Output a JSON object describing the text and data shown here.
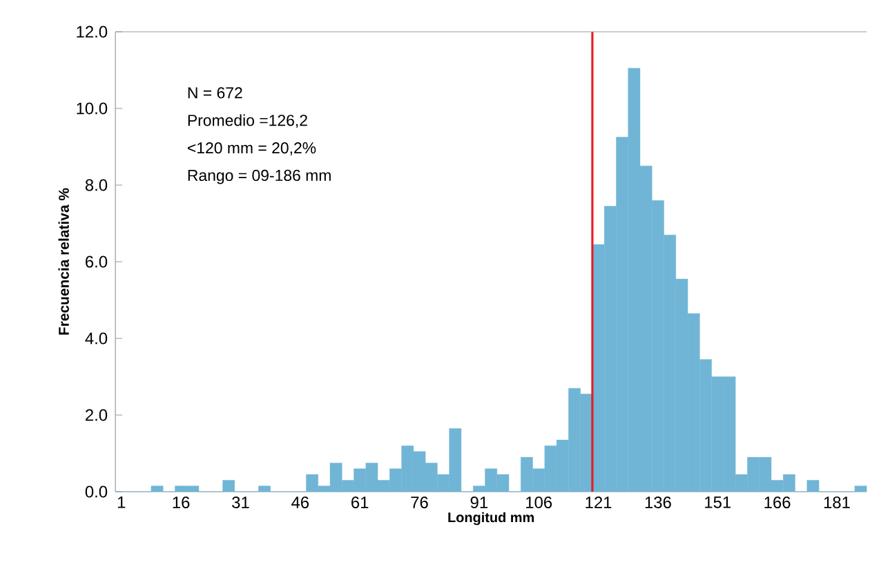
{
  "chart_data": {
    "type": "histogram",
    "xlabel": "Longitud mm",
    "ylabel": "Frecuencia relativa %",
    "bins": [
      -0.5,
      2.5,
      5.5,
      8.5,
      11.5,
      14.5,
      17.5,
      20.5,
      23.5,
      26.5,
      29.5,
      32.5,
      35.5,
      38.5,
      41.5,
      44.5,
      47.5,
      50.5,
      53.5,
      56.5,
      59.5,
      62.5,
      65.5,
      68.5,
      71.5,
      74.5,
      77.5,
      80.5,
      83.5,
      86.5,
      89.5,
      92.5,
      95.5,
      98.5,
      101.5,
      104.5,
      107.5,
      110.5,
      113.5,
      116.5,
      119.5,
      122.5,
      125.5,
      128.5,
      131.5,
      134.5,
      137.5,
      140.5,
      143.5,
      146.5,
      149.5,
      152.5,
      155.5,
      158.5,
      161.5,
      164.5,
      167.5,
      170.5,
      173.5,
      176.5,
      179.5,
      182.5,
      185.5,
      188.5
    ],
    "values": [
      0,
      0,
      0,
      0.15,
      0,
      0.15,
      0.15,
      0,
      0,
      0.3,
      0,
      0,
      0.15,
      0,
      0,
      0,
      0.45,
      0.15,
      0.75,
      0.3,
      0.6,
      0.75,
      0.3,
      0.6,
      1.2,
      1.05,
      0.75,
      0.45,
      1.65,
      0,
      0.15,
      0.6,
      0.45,
      0,
      0.9,
      0.6,
      1.2,
      1.35,
      2.7,
      2.55,
      6.45,
      7.45,
      9.25,
      11.05,
      8.5,
      7.6,
      6.7,
      5.55,
      4.65,
      3.45,
      3.0,
      3.0,
      0.45,
      0.9,
      0.9,
      0.3,
      0.45,
      0,
      0.3,
      0,
      0,
      0,
      0.15
    ],
    "color": "#70b5d5",
    "xlim": [
      -0.5,
      188.5
    ],
    "xticks": [
      1,
      16,
      31,
      46,
      61,
      76,
      91,
      106,
      121,
      136,
      151,
      166,
      181
    ],
    "ylim": [
      0,
      12
    ],
    "yticks": [
      {
        "value": 0,
        "label": "0.0"
      },
      {
        "value": 2,
        "label": "2.0"
      },
      {
        "value": 4,
        "label": "4.0"
      },
      {
        "value": 6,
        "label": "6.0"
      },
      {
        "value": 8,
        "label": "8.0"
      },
      {
        "value": 10,
        "label": "10.0"
      },
      {
        "value": 12,
        "label": "12.0"
      }
    ],
    "ref_lines": [
      {
        "axis": "x",
        "value": 119.5,
        "color": "#e41e26"
      }
    ],
    "annotations": [
      "N =  672",
      "Promedio =126,2",
      "<120 mm  =  20,2%",
      "Rango =  09-186 mm"
    ],
    "grid": false
  }
}
